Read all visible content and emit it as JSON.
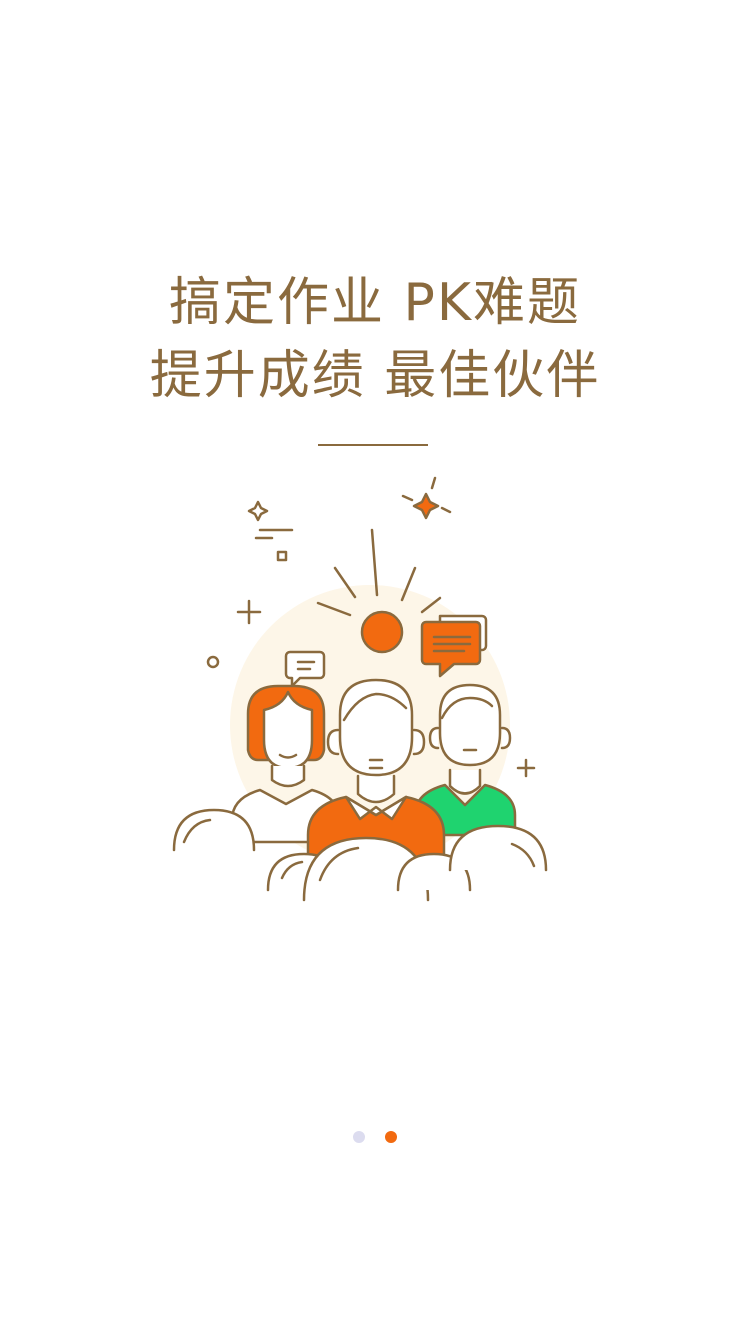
{
  "onboarding": {
    "headline_line1": "搞定作业 PK难题",
    "headline_line2": "提升成绩 最佳伙伴",
    "current_page": 2,
    "page_count": 2
  },
  "colors": {
    "text_brown": "#8a6a3e",
    "accent_orange": "#f26a10",
    "accent_green": "#1fd36f",
    "dot_inactive": "#dcdcef",
    "dot_active": "#f26a10",
    "glow": "#fdf6e8"
  }
}
